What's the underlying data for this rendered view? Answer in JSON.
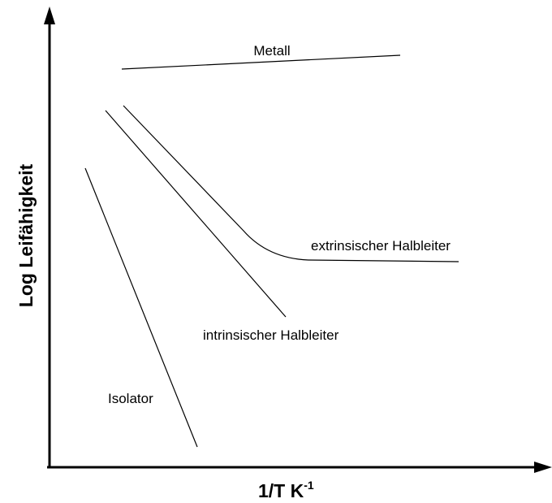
{
  "axes": {
    "y_label": "Log Leifähigkeit",
    "x_label": "1/T K",
    "x_label_sup": "-1"
  },
  "curves": {
    "metal": "Metall",
    "extrinsic": "extrinsischer Halbleiter",
    "intrinsic": "intrinsischer Halbleiter",
    "insulator": "Isolator"
  }
}
